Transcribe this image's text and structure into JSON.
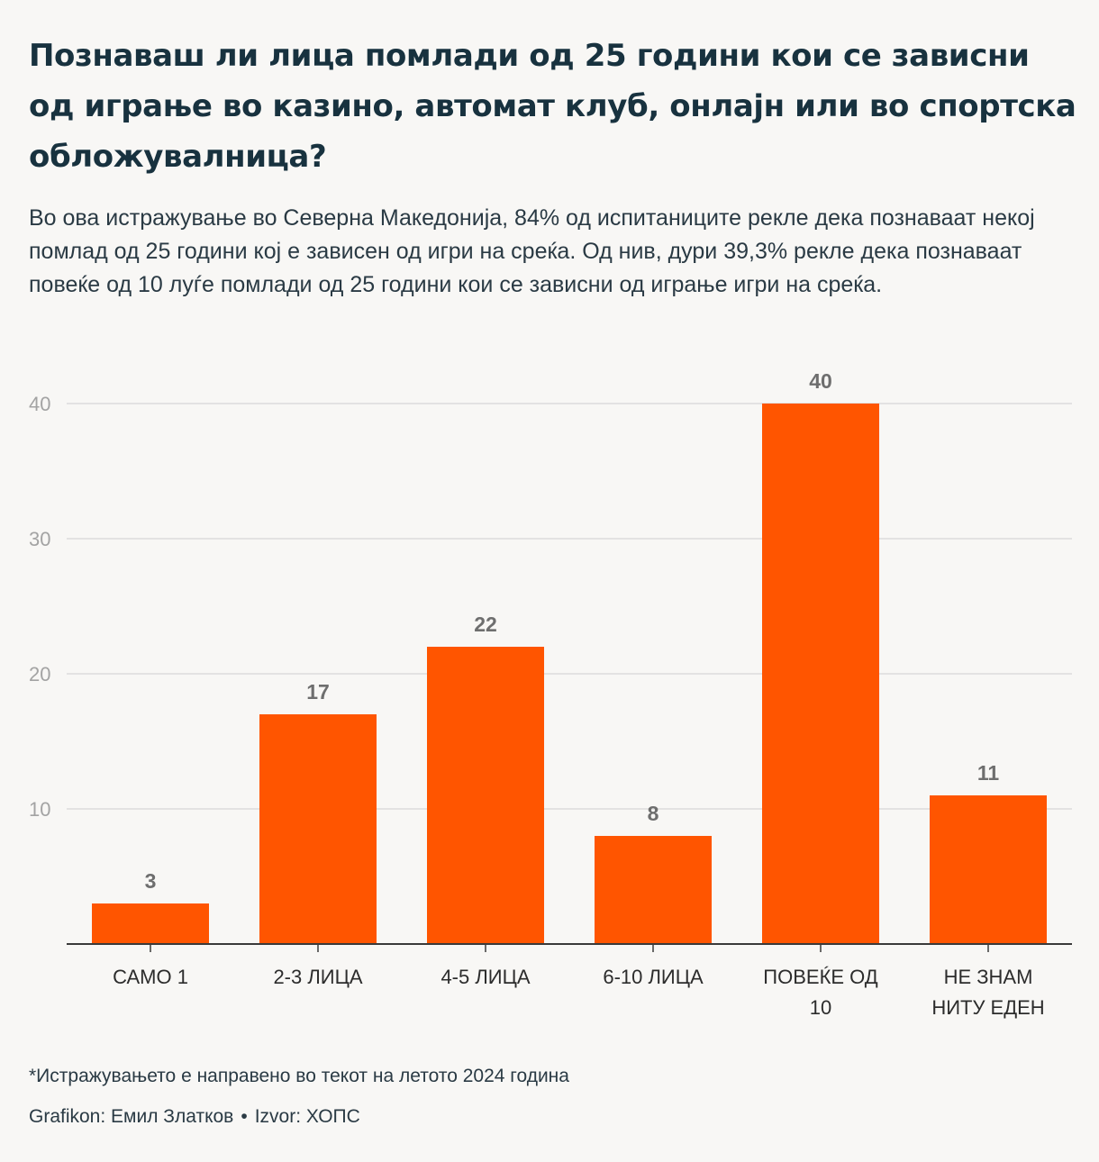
{
  "header": {
    "title": "Познаваш ли лица помлади од 25 години кои се зависни од играње во казино, автомат клуб, онлајн или во спортска обложувалница?",
    "subtitle": "Во ова истражување во Северна Македонија, 84% од испитаниците рекле дека познаваат некој помлад од 25 години кој е зависен од игри на среќа. Од нив, дури 39,3% рекле дека познаваат повеќе од 10 луѓе помлади од 25 години кои се зависни од играње игри на среќа."
  },
  "chart_data": {
    "type": "bar",
    "categories": [
      [
        "САМО 1"
      ],
      [
        "2-3 ЛИЦА"
      ],
      [
        "4-5 ЛИЦА"
      ],
      [
        "6-10 ЛИЦА"
      ],
      [
        "ПОВЕЌЕ ОД",
        "10"
      ],
      [
        "НЕ ЗНАМ",
        "НИТУ ЕДЕН"
      ]
    ],
    "values": [
      3,
      17,
      22,
      8,
      40,
      11
    ],
    "yticks": [
      10,
      20,
      30,
      40
    ],
    "ylim": [
      0,
      40
    ],
    "title": "",
    "xlabel": "",
    "ylabel": "",
    "grid": true,
    "bar_color": "#ff5500"
  },
  "footer": {
    "footnote": "*Истражувањето е направено во текот на летото 2024 година",
    "credit_graph": "Grafikon: Емил Златков",
    "separator": "•",
    "credit_source": "Izvor: ХОПС"
  }
}
